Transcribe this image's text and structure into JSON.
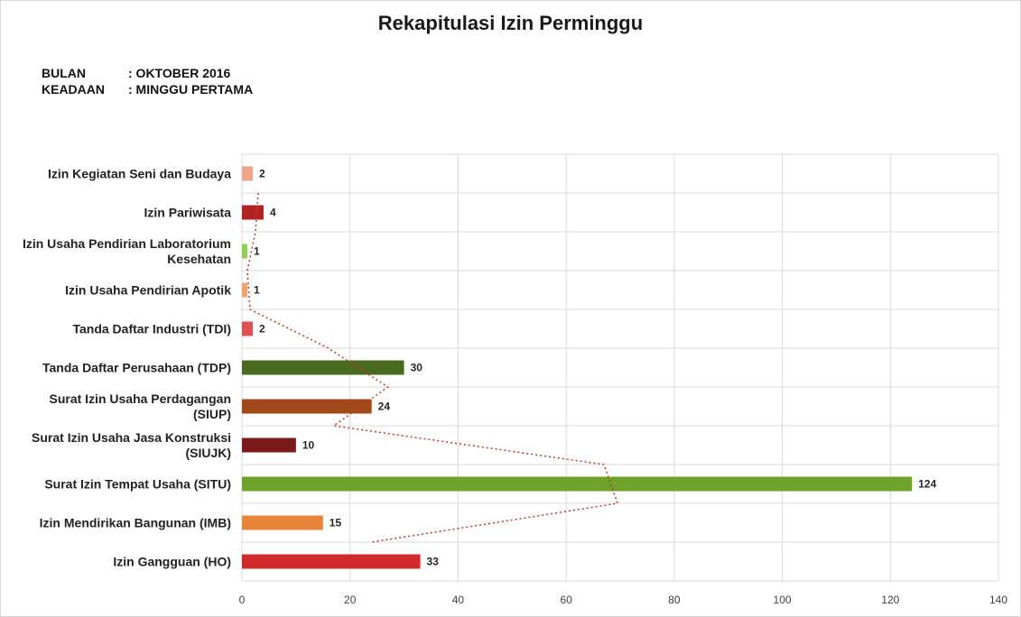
{
  "title": "Rekapitulasi Izin Perminggu",
  "meta": {
    "bulan_label": "BULAN",
    "bulan_value": ": OKTOBER 2016",
    "keadaan_label": "KEADAAN",
    "keadaan_value": ": MINGGU PERTAMA"
  },
  "chart_data": {
    "type": "bar",
    "orientation": "horizontal",
    "title": "Rekapitulasi Izin Perminggu",
    "categories": [
      [
        "Izin Kegiatan Seni dan Budaya"
      ],
      [
        "Izin Pariwisata"
      ],
      [
        "Izin Usaha Pendirian Laboratorium",
        "Kesehatan"
      ],
      [
        "Izin Usaha Pendirian Apotik"
      ],
      [
        "Tanda Daftar Industri (TDI)"
      ],
      [
        "Tanda Daftar Perusahaan (TDP)"
      ],
      [
        "Surat Izin Usaha Perdagangan",
        "(SIUP)"
      ],
      [
        "Surat Izin Usaha Jasa Konstruksi",
        "(SIUJK)"
      ],
      [
        "Surat Izin Tempat Usaha (SITU)"
      ],
      [
        "Izin Mendirikan Bangunan (IMB)"
      ],
      [
        "Izin Gangguan (HO)"
      ]
    ],
    "values": [
      2,
      4,
      1,
      1,
      2,
      30,
      24,
      10,
      124,
      15,
      33
    ],
    "bar_colors": [
      "#f0a58a",
      "#b22222",
      "#8fd14f",
      "#f4a46a",
      "#e05050",
      "#4a6b1f",
      "#a04a1a",
      "#7a1a1a",
      "#6ea22a",
      "#e8843a",
      "#d02a2a"
    ],
    "xlim": [
      0,
      140
    ],
    "xticks": [
      0,
      20,
      40,
      60,
      80,
      100,
      120,
      140
    ],
    "grid": true,
    "data_labels": true,
    "trendline_color": "#c0392b"
  }
}
